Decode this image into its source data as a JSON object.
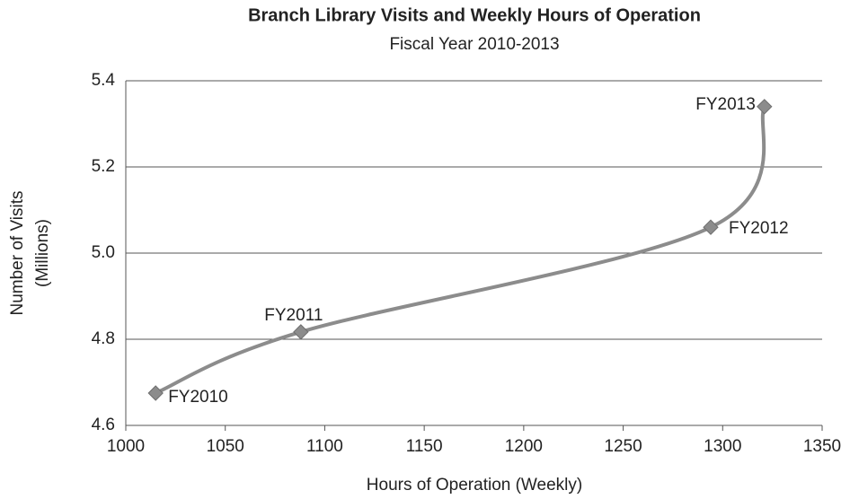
{
  "chart_data": {
    "type": "scatter",
    "title": "Branch Library Visits and Weekly Hours of Operation",
    "subtitle": "Fiscal Year 2010-2013",
    "x_label": "Hours of Operation (Weekly)",
    "y_label": [
      "Number of Visits",
      "(Millions)"
    ],
    "x": [
      1015,
      1088,
      1294,
      1321
    ],
    "values": [
      4.675,
      4.817,
      5.06,
      5.34
    ],
    "point_labels": [
      "FY2010",
      "FY2011",
      "FY2012",
      "FY2013"
    ],
    "color": "#8c8c8c",
    "smooth_line": true,
    "xlim": [
      1000,
      1350
    ],
    "xticks": [
      1000,
      1050,
      1100,
      1150,
      1200,
      1250,
      1300,
      1350
    ],
    "ylim": [
      4.6,
      5.4
    ],
    "yticks": [
      4.6,
      4.8,
      {
        "value": 5,
        "label": "5.0"
      },
      5.2,
      5.4
    ],
    "grid": true
  }
}
